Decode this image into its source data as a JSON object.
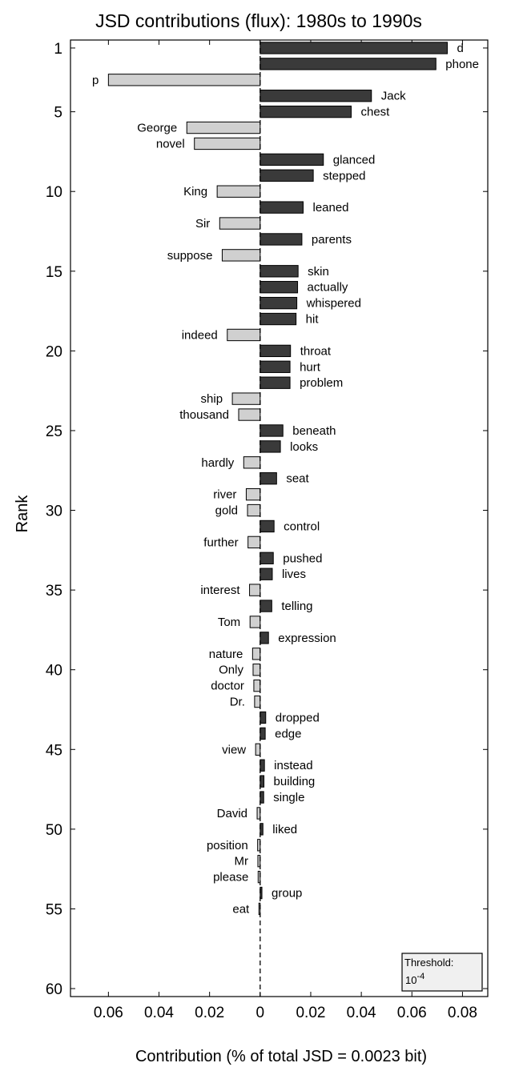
{
  "chart_data": {
    "type": "bar",
    "orientation": "horizontal",
    "title": "JSD contributions (flux): 1980s to 1990s",
    "xlabel": "Contribution (% of total JSD = 0.0023 bit)",
    "ylabel": "Rank",
    "xlim": [
      -0.075,
      0.09
    ],
    "ylim": [
      0.5,
      60.5
    ],
    "x_ticks": [
      -0.06,
      -0.04,
      -0.02,
      0,
      0.02,
      0.04,
      0.06,
      0.08
    ],
    "x_tick_labels": [
      "0.06",
      "0.04",
      "0.02",
      "0",
      "0.02",
      "0.04",
      "0.06",
      "0.08"
    ],
    "y_ticks": [
      1,
      5,
      10,
      15,
      20,
      25,
      30,
      35,
      40,
      45,
      50,
      55,
      60
    ],
    "y_tick_labels": [
      "1",
      "5",
      "10",
      "15",
      "20",
      "25",
      "30",
      "35",
      "40",
      "45",
      "50",
      "55",
      "60"
    ],
    "colors": {
      "positive": "#3a3a3a",
      "negative": "#d0d0d0"
    },
    "annotation": {
      "label": "Threshold:",
      "base": "10",
      "exponent": "-4"
    },
    "items": [
      {
        "rank": 1,
        "word": "d",
        "value": 0.074
      },
      {
        "rank": 2,
        "word": "phone",
        "value": 0.0695
      },
      {
        "rank": 3,
        "word": "p",
        "value": -0.06
      },
      {
        "rank": 4,
        "word": "Jack",
        "value": 0.044
      },
      {
        "rank": 5,
        "word": "chest",
        "value": 0.036
      },
      {
        "rank": 6,
        "word": "George",
        "value": -0.029
      },
      {
        "rank": 7,
        "word": "novel",
        "value": -0.026
      },
      {
        "rank": 8,
        "word": "glanced",
        "value": 0.025
      },
      {
        "rank": 9,
        "word": "stepped",
        "value": 0.021
      },
      {
        "rank": 10,
        "word": "King",
        "value": -0.017
      },
      {
        "rank": 11,
        "word": "leaned",
        "value": 0.017
      },
      {
        "rank": 12,
        "word": "Sir",
        "value": -0.016
      },
      {
        "rank": 13,
        "word": "parents",
        "value": 0.0165
      },
      {
        "rank": 14,
        "word": "suppose",
        "value": -0.015
      },
      {
        "rank": 15,
        "word": "skin",
        "value": 0.015
      },
      {
        "rank": 16,
        "word": "actually",
        "value": 0.0148
      },
      {
        "rank": 17,
        "word": "whispered",
        "value": 0.0145
      },
      {
        "rank": 18,
        "word": "hit",
        "value": 0.0142
      },
      {
        "rank": 19,
        "word": "indeed",
        "value": -0.013
      },
      {
        "rank": 20,
        "word": "throat",
        "value": 0.012
      },
      {
        "rank": 21,
        "word": "hurt",
        "value": 0.0118
      },
      {
        "rank": 22,
        "word": "problem",
        "value": 0.0118
      },
      {
        "rank": 23,
        "word": "ship",
        "value": -0.011
      },
      {
        "rank": 24,
        "word": "thousand",
        "value": -0.0085
      },
      {
        "rank": 25,
        "word": "beneath",
        "value": 0.009
      },
      {
        "rank": 26,
        "word": "looks",
        "value": 0.008
      },
      {
        "rank": 27,
        "word": "hardly",
        "value": -0.0065
      },
      {
        "rank": 28,
        "word": "seat",
        "value": 0.0065
      },
      {
        "rank": 29,
        "word": "river",
        "value": -0.0055
      },
      {
        "rank": 30,
        "word": "gold",
        "value": -0.005
      },
      {
        "rank": 31,
        "word": "control",
        "value": 0.0055
      },
      {
        "rank": 32,
        "word": "further",
        "value": -0.0048
      },
      {
        "rank": 33,
        "word": "pushed",
        "value": 0.0052
      },
      {
        "rank": 34,
        "word": "lives",
        "value": 0.0048
      },
      {
        "rank": 35,
        "word": "interest",
        "value": -0.0042
      },
      {
        "rank": 36,
        "word": "telling",
        "value": 0.0046
      },
      {
        "rank": 37,
        "word": "Tom",
        "value": -0.004
      },
      {
        "rank": 38,
        "word": "expression",
        "value": 0.0033
      },
      {
        "rank": 39,
        "word": "nature",
        "value": -0.003
      },
      {
        "rank": 40,
        "word": "Only",
        "value": -0.0028
      },
      {
        "rank": 41,
        "word": "doctor",
        "value": -0.0025
      },
      {
        "rank": 42,
        "word": "Dr.",
        "value": -0.0022
      },
      {
        "rank": 43,
        "word": "dropped",
        "value": 0.0022
      },
      {
        "rank": 44,
        "word": "edge",
        "value": 0.002
      },
      {
        "rank": 45,
        "word": "view",
        "value": -0.0018
      },
      {
        "rank": 46,
        "word": "instead",
        "value": 0.0017
      },
      {
        "rank": 47,
        "word": "building",
        "value": 0.0015
      },
      {
        "rank": 48,
        "word": "single",
        "value": 0.0014
      },
      {
        "rank": 49,
        "word": "David",
        "value": -0.0012
      },
      {
        "rank": 50,
        "word": "liked",
        "value": 0.0011
      },
      {
        "rank": 51,
        "word": "position",
        "value": -0.001
      },
      {
        "rank": 52,
        "word": "Mr",
        "value": -0.0009
      },
      {
        "rank": 53,
        "word": "please",
        "value": -0.0008
      },
      {
        "rank": 54,
        "word": "group",
        "value": 0.0007
      },
      {
        "rank": 55,
        "word": "eat",
        "value": -0.0005
      }
    ]
  }
}
